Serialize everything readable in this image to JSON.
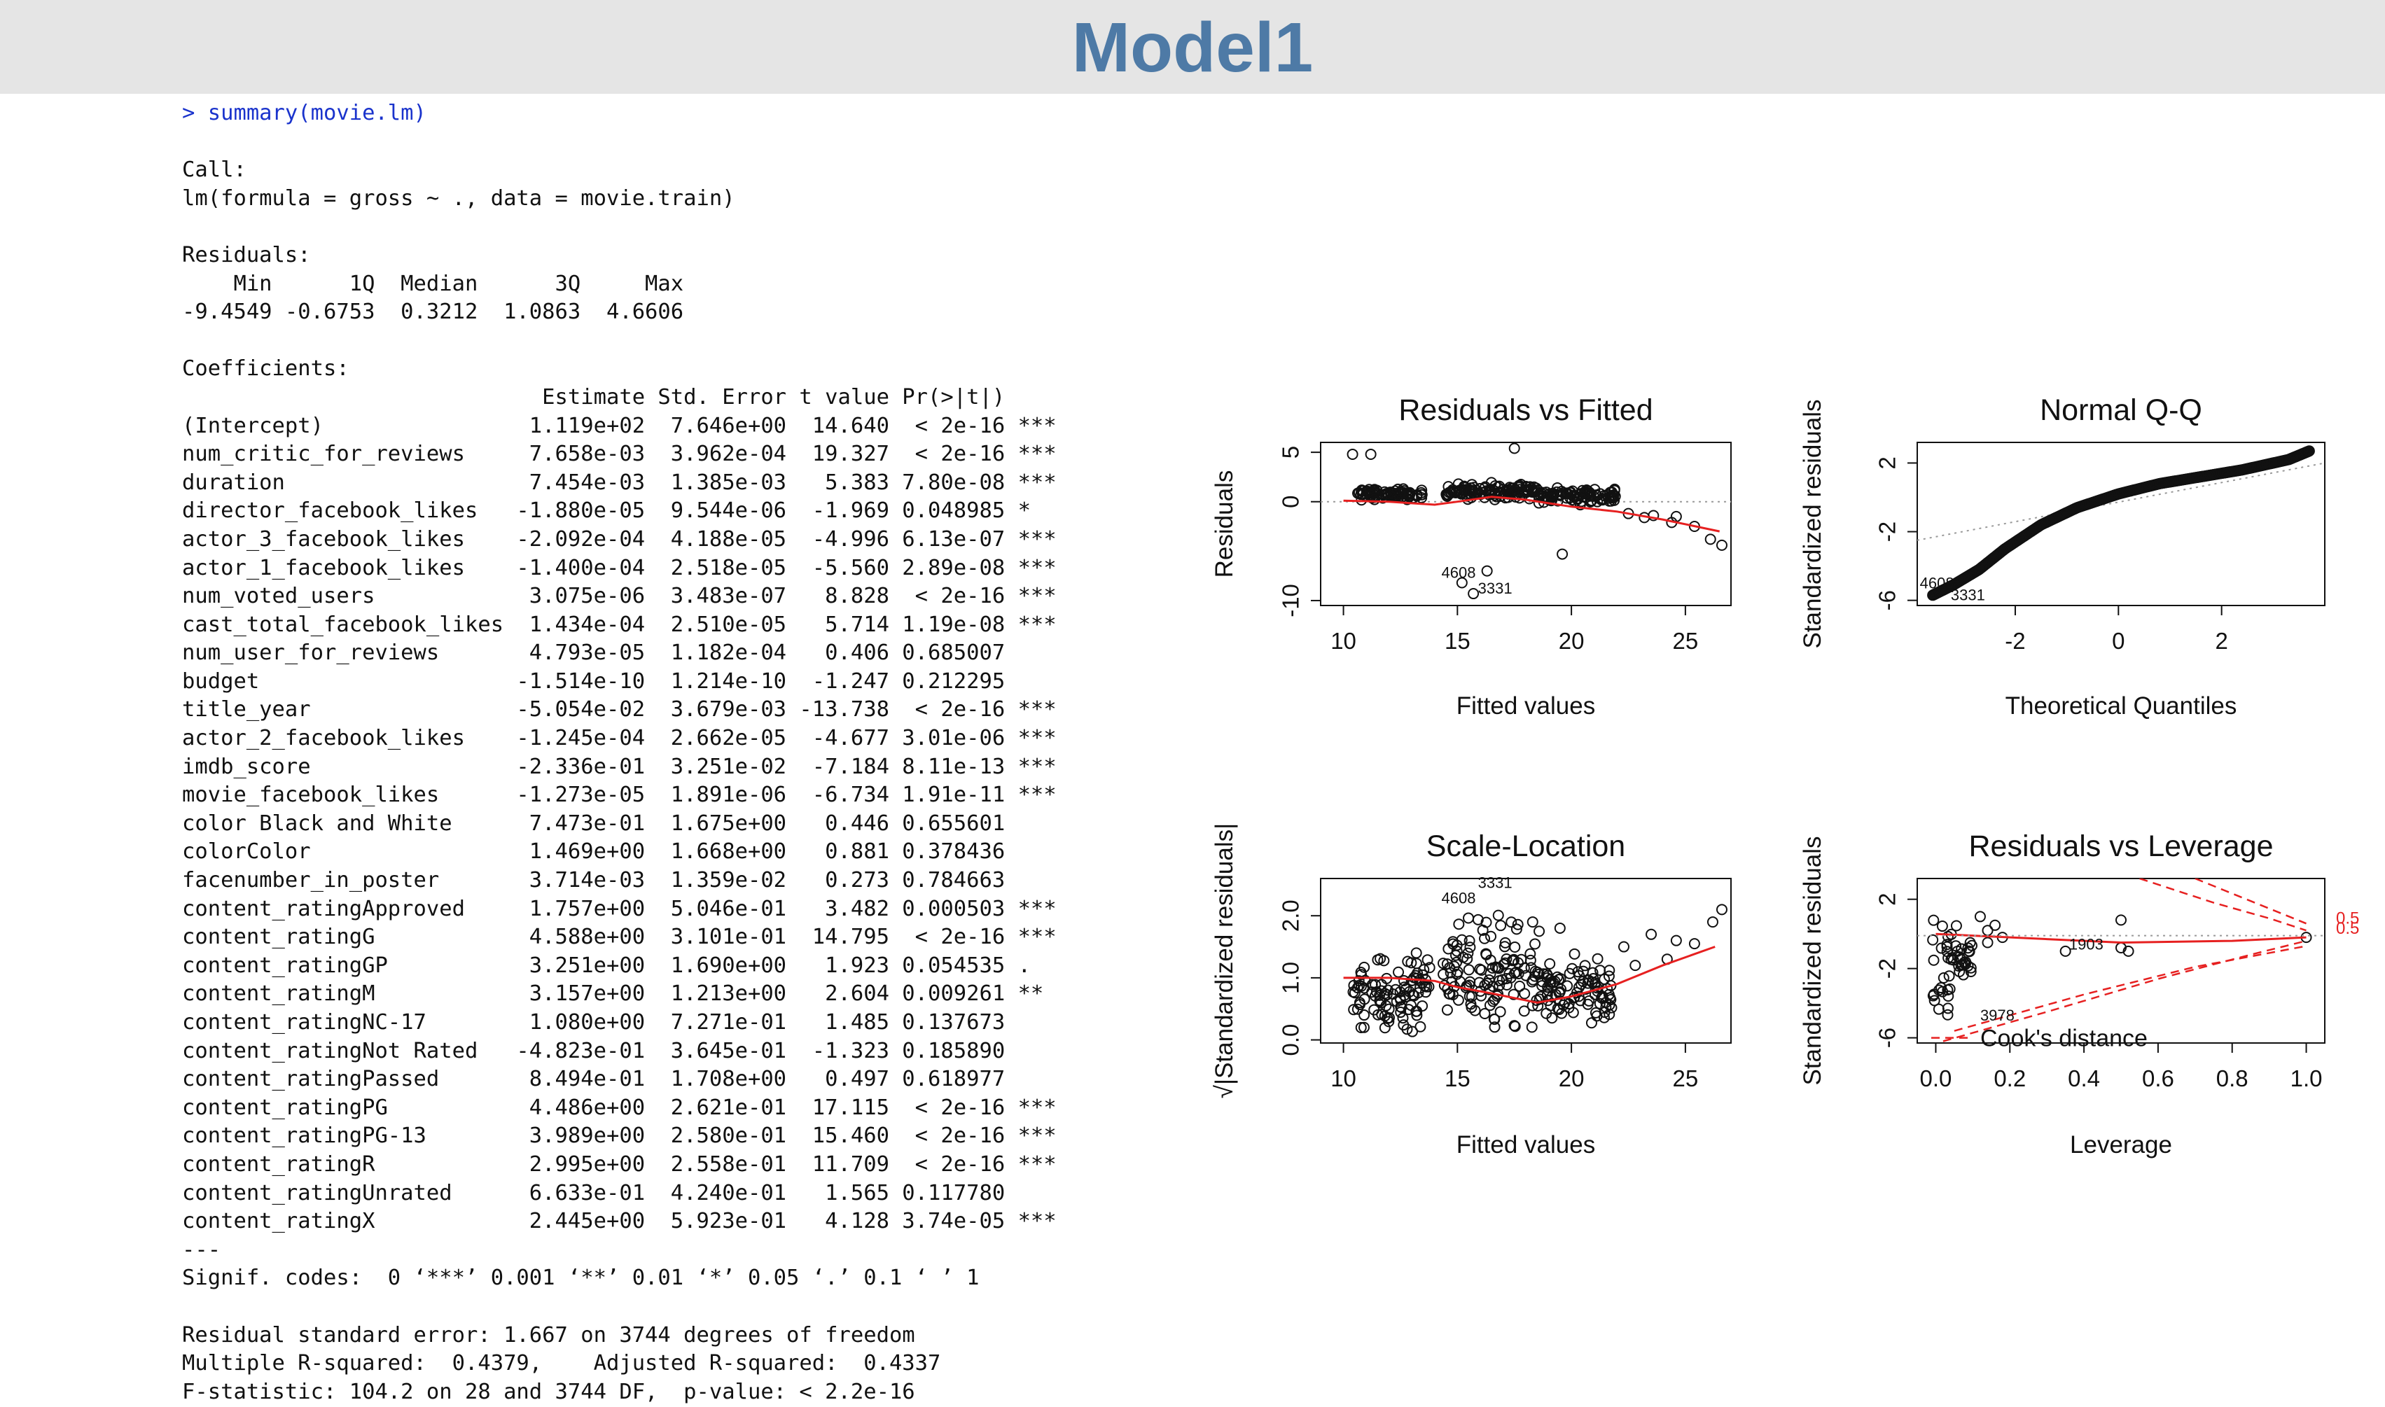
{
  "slide": {
    "title": "Model1"
  },
  "console": {
    "lines": [
      {
        "text": "> summary(movie.lm)",
        "cmd": true
      },
      {
        "text": ""
      },
      {
        "text": "Call:"
      },
      {
        "text": "lm(formula = gross ~ ., data = movie.train)"
      },
      {
        "text": ""
      },
      {
        "text": "Residuals:"
      },
      {
        "text": "    Min      1Q  Median      3Q     Max "
      },
      {
        "text": "-9.4549 -0.6753  0.3212  1.0863  4.6606 "
      },
      {
        "text": ""
      },
      {
        "text": "Coefficients:"
      },
      {
        "text": "                            Estimate Std. Error t value Pr(>|t|)    "
      },
      {
        "text": "(Intercept)                1.119e+02  7.646e+00  14.640  < 2e-16 ***"
      },
      {
        "text": "num_critic_for_reviews     7.658e-03  3.962e-04  19.327  < 2e-16 ***"
      },
      {
        "text": "duration                   7.454e-03  1.385e-03   5.383 7.80e-08 ***"
      },
      {
        "text": "director_facebook_likes   -1.880e-05  9.544e-06  -1.969 0.048985 *  "
      },
      {
        "text": "actor_3_facebook_likes    -2.092e-04  4.188e-05  -4.996 6.13e-07 ***"
      },
      {
        "text": "actor_1_facebook_likes    -1.400e-04  2.518e-05  -5.560 2.89e-08 ***"
      },
      {
        "text": "num_voted_users            3.075e-06  3.483e-07   8.828  < 2e-16 ***"
      },
      {
        "text": "cast_total_facebook_likes  1.434e-04  2.510e-05   5.714 1.19e-08 ***"
      },
      {
        "text": "num_user_for_reviews       4.793e-05  1.182e-04   0.406 0.685007    "
      },
      {
        "text": "budget                    -1.514e-10  1.214e-10  -1.247 0.212295    "
      },
      {
        "text": "title_year                -5.054e-02  3.679e-03 -13.738  < 2e-16 ***"
      },
      {
        "text": "actor_2_facebook_likes    -1.245e-04  2.662e-05  -4.677 3.01e-06 ***"
      },
      {
        "text": "imdb_score                -2.336e-01  3.251e-02  -7.184 8.11e-13 ***"
      },
      {
        "text": "movie_facebook_likes      -1.273e-05  1.891e-06  -6.734 1.91e-11 ***"
      },
      {
        "text": "color Black and White      7.473e-01  1.675e+00   0.446 0.655601    "
      },
      {
        "text": "colorColor                 1.469e+00  1.668e+00   0.881 0.378436    "
      },
      {
        "text": "facenumber_in_poster       3.714e-03  1.359e-02   0.273 0.784663    "
      },
      {
        "text": "content_ratingApproved     1.757e+00  5.046e-01   3.482 0.000503 ***"
      },
      {
        "text": "content_ratingG            4.588e+00  3.101e-01  14.795  < 2e-16 ***"
      },
      {
        "text": "content_ratingGP           3.251e+00  1.690e+00   1.923 0.054535 .  "
      },
      {
        "text": "content_ratingM            3.157e+00  1.213e+00   2.604 0.009261 ** "
      },
      {
        "text": "content_ratingNC-17        1.080e+00  7.271e-01   1.485 0.137673    "
      },
      {
        "text": "content_ratingNot Rated   -4.823e-01  3.645e-01  -1.323 0.185890    "
      },
      {
        "text": "content_ratingPassed       8.494e-01  1.708e+00   0.497 0.618977    "
      },
      {
        "text": "content_ratingPG           4.486e+00  2.621e-01  17.115  < 2e-16 ***"
      },
      {
        "text": "content_ratingPG-13        3.989e+00  2.580e-01  15.460  < 2e-16 ***"
      },
      {
        "text": "content_ratingR            2.995e+00  2.558e-01  11.709  < 2e-16 ***"
      },
      {
        "text": "content_ratingUnrated      6.633e-01  4.240e-01   1.565 0.117780    "
      },
      {
        "text": "content_ratingX            2.445e+00  5.923e-01   4.128 3.74e-05 ***"
      },
      {
        "text": "---"
      },
      {
        "text": "Signif. codes:  0 ‘***’ 0.001 ‘**’ 0.01 ‘*’ 0.05 ‘.’ 0.1 ‘ ’ 1"
      },
      {
        "text": ""
      },
      {
        "text": "Residual standard error: 1.667 on 3744 degrees of freedom"
      },
      {
        "text": "Multiple R-squared:  0.4379,\tAdjusted R-squared:  0.4337 "
      },
      {
        "text": "F-statistic: 104.2 on 28 and 3744 DF,  p-value: < 2.2e-16"
      }
    ]
  },
  "chart_data": [
    {
      "type": "scatter",
      "title": "Residuals vs Fitted",
      "xlabel": "Fitted values",
      "ylabel": "Residuals",
      "xlim": [
        9,
        27
      ],
      "ylim": [
        -10.5,
        6
      ],
      "xticks": [
        "10",
        "15",
        "20",
        "25"
      ],
      "yticks": [
        "-10",
        "0",
        "5"
      ],
      "reference": {
        "type": "hline",
        "y": 0,
        "style": "dotted"
      },
      "annotations": [
        "4608",
        "3331"
      ],
      "smooth": [
        [
          10,
          0.1
        ],
        [
          12,
          0.0
        ],
        [
          14,
          -0.3
        ],
        [
          15,
          0.0
        ],
        [
          16.5,
          0.5
        ],
        [
          18,
          0.2
        ],
        [
          20,
          -0.5
        ],
        [
          22,
          -1.0
        ],
        [
          24,
          -1.8
        ],
        [
          26.5,
          -3.0
        ]
      ],
      "series": [
        {
          "clusters": [
            [
              10.5,
              13.5,
              0.1,
              1.6
            ],
            [
              14.5,
              18.5,
              0.2,
              2.3
            ],
            [
              18.5,
              22,
              -0.3,
              1.8
            ]
          ],
          "points": [
            [
              10.4,
              4.8
            ],
            [
              11.2,
              4.8
            ],
            [
              22.5,
              -1.2
            ],
            [
              23.2,
              -1.6
            ],
            [
              23.6,
              -1.4
            ],
            [
              24.4,
              -2.1
            ],
            [
              24.6,
              -1.5
            ],
            [
              25.4,
              -2.5
            ],
            [
              26.1,
              -3.8
            ],
            [
              26.6,
              -4.4
            ],
            [
              17.5,
              5.4
            ],
            [
              15.2,
              -8.2
            ],
            [
              15.7,
              -9.3
            ],
            [
              19.6,
              -5.3
            ],
            [
              16.3,
              -7.0
            ]
          ]
        }
      ]
    },
    {
      "type": "scatter",
      "title": "Normal Q-Q",
      "xlabel": "Theoretical Quantiles",
      "ylabel": "Standardized residuals",
      "xlim": [
        -3.9,
        4.0
      ],
      "ylim": [
        -6.3,
        3.2
      ],
      "xticks": [
        "-2",
        "0",
        "2"
      ],
      "yticks": [
        "-6",
        "-2",
        "2"
      ],
      "reference": {
        "type": "line",
        "points": [
          [
            -3.9,
            -2.5
          ],
          [
            4.0,
            2.0
          ]
        ],
        "style": "dotted"
      },
      "annotations": [
        "4608",
        "3331"
      ],
      "curve": [
        [
          -3.6,
          -5.7
        ],
        [
          -3.2,
          -5.1
        ],
        [
          -2.7,
          -4.2
        ],
        [
          -2.2,
          -3.0
        ],
        [
          -1.5,
          -1.6
        ],
        [
          -0.8,
          -0.6
        ],
        [
          0,
          0.2
        ],
        [
          0.8,
          0.8
        ],
        [
          1.6,
          1.2
        ],
        [
          2.4,
          1.6
        ],
        [
          3.3,
          2.2
        ],
        [
          3.7,
          2.7
        ]
      ]
    },
    {
      "type": "scatter",
      "title": "Scale-Location",
      "xlabel": "Fitted values",
      "ylabel": "√|Standardized residuals|",
      "xlim": [
        9,
        27
      ],
      "ylim": [
        -0.05,
        2.6
      ],
      "xticks": [
        "10",
        "15",
        "20",
        "25"
      ],
      "yticks": [
        "0.0",
        "1.0",
        "2.0"
      ],
      "annotations": [
        "4608",
        "3331"
      ],
      "smooth": [
        [
          10,
          1.0
        ],
        [
          12,
          1.0
        ],
        [
          14,
          0.95
        ],
        [
          15,
          0.85
        ],
        [
          16.5,
          0.75
        ],
        [
          18.5,
          0.6
        ],
        [
          20,
          0.7
        ],
        [
          22,
          0.9
        ],
        [
          24,
          1.2
        ],
        [
          26.3,
          1.5
        ]
      ],
      "series": [
        {
          "clusters": [
            [
              10.3,
              13.8,
              0.1,
              1.7
            ],
            [
              14.3,
              18.7,
              0.05,
              2.45
            ],
            [
              18.7,
              21.8,
              0.1,
              1.6
            ]
          ],
          "points": [
            [
              22.3,
              1.5
            ],
            [
              22.8,
              1.2
            ],
            [
              23.5,
              1.7
            ],
            [
              24.2,
              1.3
            ],
            [
              24.6,
              1.6
            ],
            [
              25.4,
              1.55
            ],
            [
              26.2,
              1.9
            ],
            [
              26.6,
              2.1
            ],
            [
              18.3,
              1.9
            ],
            [
              19.5,
              1.8
            ]
          ]
        }
      ]
    },
    {
      "type": "scatter",
      "title": "Residuals vs Leverage",
      "xlabel": "Leverage",
      "ylabel": "Standardized residuals",
      "xlim": [
        -0.05,
        1.05
      ],
      "ylim": [
        -6.3,
        3.2
      ],
      "xticks": [
        "0.0",
        "0.2",
        "0.4",
        "0.6",
        "0.8",
        "1.0"
      ],
      "yticks": [
        "-6",
        "-2",
        "2"
      ],
      "annotations": [
        "1903",
        "3978",
        "0.5",
        "0.5"
      ],
      "legend": [
        "Cook's distance"
      ],
      "smooth": [
        [
          0,
          0.0
        ],
        [
          0.1,
          -0.1
        ],
        [
          0.3,
          -0.3
        ],
        [
          0.5,
          -0.5
        ],
        [
          0.8,
          -0.4
        ],
        [
          1.0,
          -0.2
        ]
      ],
      "series": [
        {
          "clusters": [
            [
              -0.01,
              0.04,
              -6.0,
              2.5
            ],
            [
              0.04,
              0.1,
              -3.5,
              1.5
            ]
          ],
          "points": [
            [
              0.12,
              1.0
            ],
            [
              0.14,
              -0.5
            ],
            [
              0.14,
              0.2
            ],
            [
              0.18,
              -0.2
            ],
            [
              0.35,
              -1.0
            ],
            [
              0.5,
              0.8
            ],
            [
              0.5,
              -0.8
            ],
            [
              0.52,
              -1.0
            ],
            [
              1.0,
              -0.2
            ],
            [
              0.16,
              0.5
            ]
          ]
        }
      ]
    }
  ]
}
